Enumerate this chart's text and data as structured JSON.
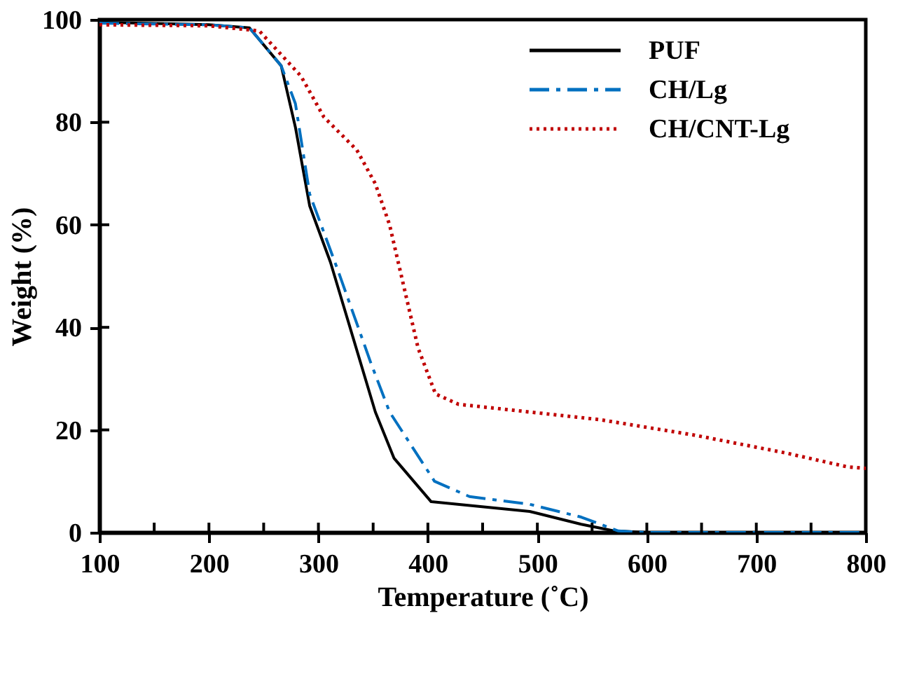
{
  "chart_data": {
    "type": "line",
    "xlabel": "Temperature (˚C)",
    "ylabel": "Weight (%)",
    "xlim": [
      100,
      800
    ],
    "ylim": [
      0,
      100
    ],
    "xticks": [
      100,
      {
        "value": 150,
        "label": null
      },
      200,
      {
        "value": 250,
        "label": null
      },
      300,
      {
        "value": 350,
        "label": null
      },
      400,
      {
        "value": 450,
        "label": null
      },
      500,
      {
        "value": 550,
        "label": null
      },
      600,
      {
        "value": 650,
        "label": null
      },
      700,
      {
        "value": 750,
        "label": null
      },
      800
    ],
    "yticks": [
      0,
      20,
      40,
      60,
      80,
      100
    ],
    "grid": false,
    "legend": "top right",
    "marker": "none",
    "series": [
      {
        "name": "PUF",
        "color": "#000000",
        "line_style": "solid",
        "x": [
          100,
          200,
          237,
          266,
          279,
          292,
          311,
          352,
          369,
          403,
          493,
          540,
          570,
          600,
          800
        ],
        "values": [
          99.5,
          99,
          98.4,
          91,
          79,
          63.7,
          52.7,
          23.5,
          14.5,
          6,
          4.1,
          1.6,
          0.3,
          0,
          0
        ]
      },
      {
        "name": "CH/Lg",
        "color": "#0070c0",
        "line_style": "dashed",
        "x": [
          100,
          200,
          237,
          266,
          279,
          292,
          318,
          348,
          365,
          406,
          438,
          493,
          540,
          574,
          600,
          800
        ],
        "values": [
          99.3,
          99,
          98.4,
          91,
          83.6,
          66,
          51,
          33,
          23.5,
          10,
          7,
          5.5,
          3,
          0.3,
          0,
          0
        ]
      },
      {
        "name": "CH/CNT-Lg",
        "color": "#c00000",
        "line_style": "dotted",
        "x": [
          100,
          200,
          246,
          284,
          305,
          335,
          352,
          365,
          378,
          391,
          407,
          428,
          557,
          643,
          727,
          783,
          800
        ],
        "values": [
          99,
          98.8,
          97.8,
          89,
          81,
          74.6,
          68,
          60,
          48,
          36,
          27,
          25,
          22,
          19,
          15.5,
          12.8,
          12.5
        ]
      }
    ]
  }
}
